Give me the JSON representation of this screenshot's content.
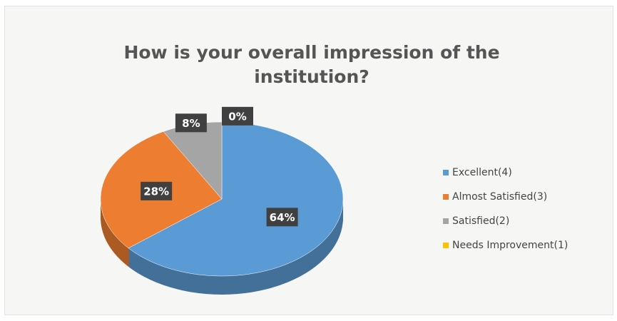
{
  "chart_data": {
    "type": "pie",
    "title": "How is your overall impression of the institution?",
    "categories": [
      "Excellent(4)",
      "Almost Satisfied(3)",
      "Satisfied(2)",
      "Needs Improvement(1)"
    ],
    "values": [
      64,
      28,
      8,
      0
    ],
    "value_labels": [
      "64%",
      "28%",
      "8%",
      "0%"
    ],
    "colors": [
      "#5b9bd5",
      "#ed7d31",
      "#a5a5a5",
      "#ffc000"
    ],
    "legend": "right"
  }
}
